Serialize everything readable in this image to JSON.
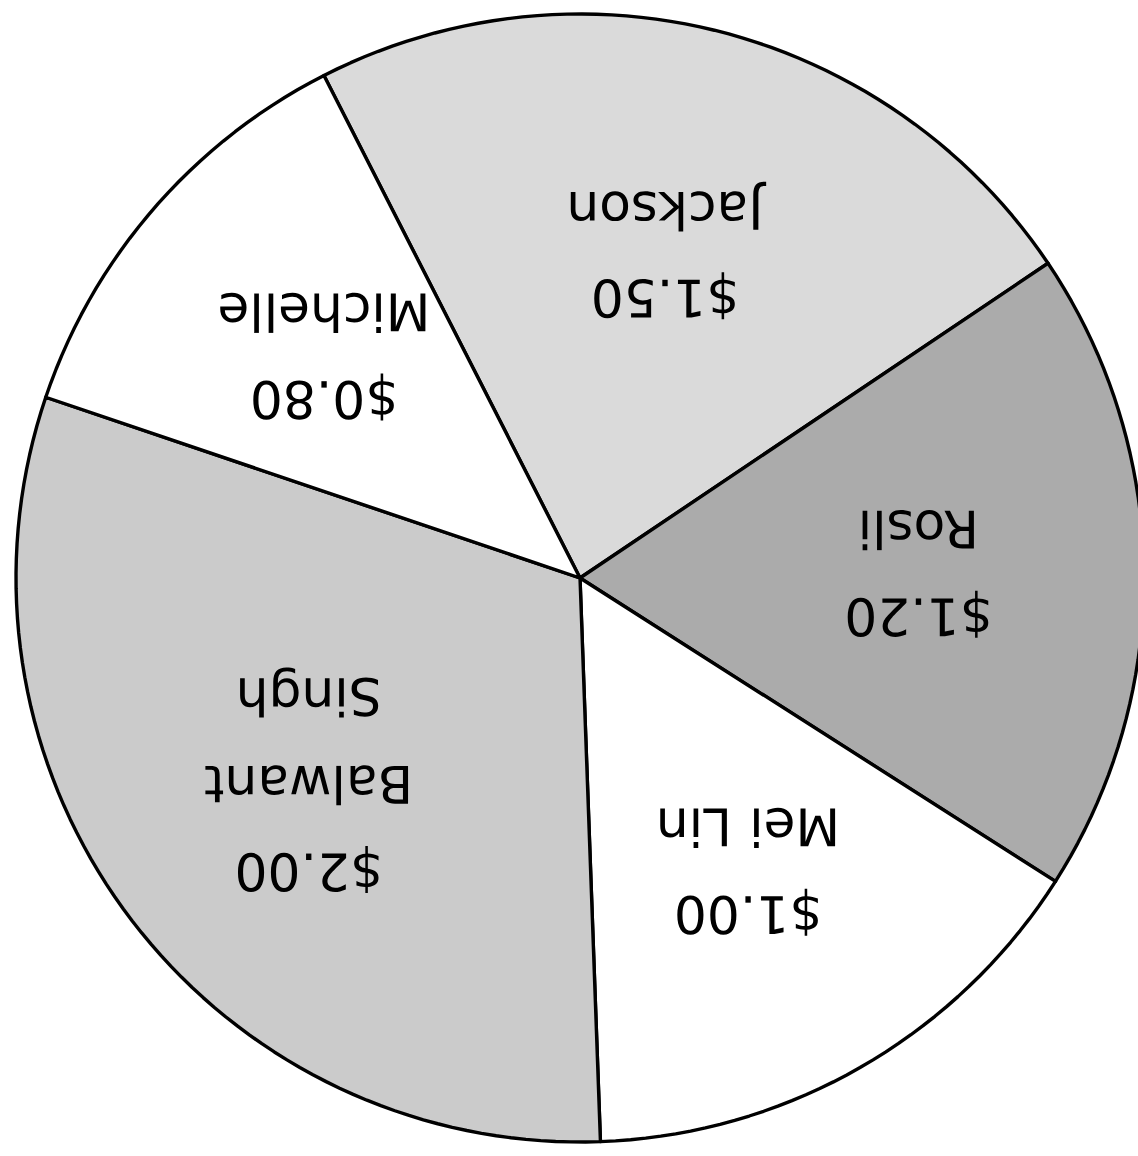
{
  "chart_data": {
    "type": "pie",
    "categories": [
      "Jackson",
      "Rosli",
      "Mei Lin",
      "Balwant Singh",
      "Michelle"
    ],
    "values": [
      1.5,
      1.2,
      1.0,
      2.0,
      0.8
    ],
    "value_labels": [
      "$1.50",
      "$1.20",
      "$1.00",
      "$2.00",
      "$0.80"
    ],
    "colors": [
      "#dadada",
      "#ababab",
      "#ffffff",
      "#cbcbcb",
      "#ffffff"
    ]
  }
}
